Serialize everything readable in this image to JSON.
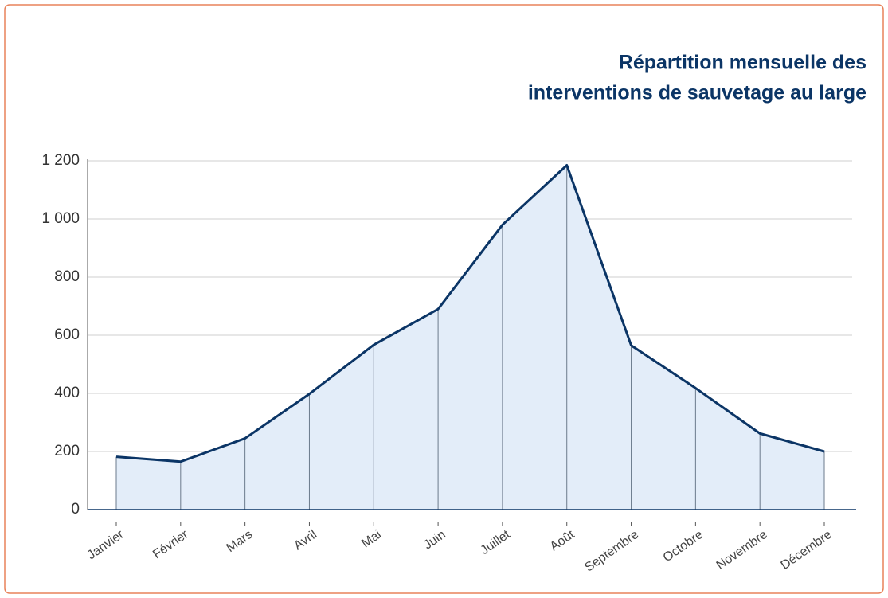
{
  "chart_data": {
    "type": "area",
    "title": [
      "Répartition mensuelle des",
      "interventions de sauvetage au large"
    ],
    "categories": [
      "Janvier",
      "Février",
      "Mars",
      "Avril",
      "Mai",
      "Juin",
      "Juillet",
      "Août",
      "Septembre",
      "Octobre",
      "Novembre",
      "Décembre"
    ],
    "values": [
      182,
      165,
      245,
      398,
      567,
      690,
      980,
      1185,
      565,
      418,
      262,
      200
    ],
    "color": "#0b3566",
    "fill": "#e3edf9",
    "ylim": [
      0,
      1200
    ],
    "yticks": [
      0,
      200,
      400,
      600,
      800,
      {
        "value": 1000,
        "label": "1 000"
      },
      {
        "value": 1200,
        "label": "1 200"
      }
    ],
    "grid": true
  }
}
